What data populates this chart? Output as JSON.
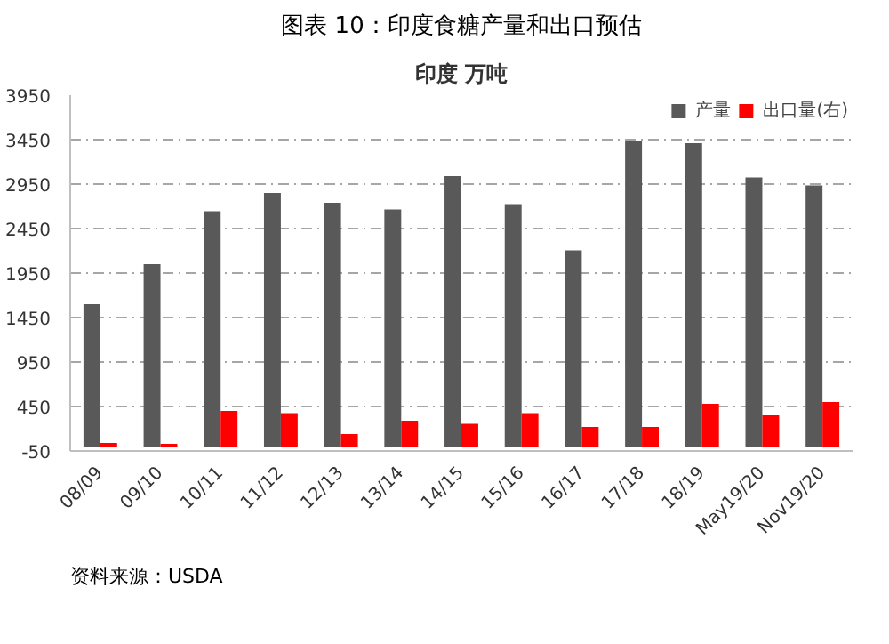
{
  "chart_data": {
    "type": "bar",
    "title": "图表 10：印度食糖产量和出口预估",
    "subtitle": "印度 万吨",
    "categories": [
      "08/09",
      "09/10",
      "10/11",
      "11/12",
      "12/13",
      "13/14",
      "14/15",
      "15/16",
      "16/17",
      "17/18",
      "18/19",
      "May19/20",
      "Nov19/20"
    ],
    "series": [
      {
        "name": "产量",
        "color": "#595959",
        "values": [
          1600,
          2050,
          2645,
          2850,
          2740,
          2665,
          3040,
          2725,
          2205,
          3440,
          3410,
          3025,
          2935
        ]
      },
      {
        "name": "出口量(右)",
        "color": "#ff0000",
        "values": [
          40,
          30,
          400,
          375,
          140,
          290,
          255,
          375,
          220,
          220,
          480,
          355,
          500
        ]
      }
    ],
    "ylim": [
      -50,
      3950
    ],
    "yticks": [
      -50,
      450,
      950,
      1450,
      1950,
      2450,
      2950,
      3450,
      3950
    ],
    "grid": "y",
    "legend": "top",
    "annotations": [
      "资料来源：USDA"
    ]
  }
}
